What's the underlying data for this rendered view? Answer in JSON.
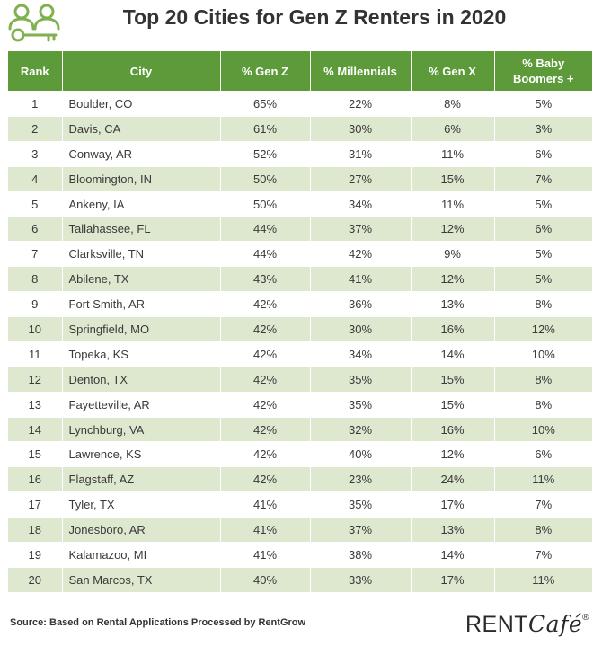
{
  "header": {
    "title": "Top 20 Cities for Gen Z Renters in 2020"
  },
  "colors": {
    "header_bg": "#5c9a3a",
    "row_alt_bg": "#dde8cf",
    "icon": "#7fb24f"
  },
  "icons": {
    "logo": "renters-key-icon"
  },
  "chart_data": {
    "type": "table",
    "title": "Top 20 Cities for Gen Z Renters in 2020",
    "columns": [
      "Rank",
      "City",
      "% Gen Z",
      "% Millennials",
      "% Gen X",
      "% Baby Boomers +"
    ],
    "rows": [
      [
        "1",
        "Boulder, CO",
        "65%",
        "22%",
        "8%",
        "5%"
      ],
      [
        "2",
        "Davis, CA",
        "61%",
        "30%",
        "6%",
        "3%"
      ],
      [
        "3",
        "Conway, AR",
        "52%",
        "31%",
        "11%",
        "6%"
      ],
      [
        "4",
        "Bloomington, IN",
        "50%",
        "27%",
        "15%",
        "7%"
      ],
      [
        "5",
        "Ankeny, IA",
        "50%",
        "34%",
        "11%",
        "5%"
      ],
      [
        "6",
        "Tallahassee, FL",
        "44%",
        "37%",
        "12%",
        "6%"
      ],
      [
        "7",
        "Clarksville, TN",
        "44%",
        "42%",
        "9%",
        "5%"
      ],
      [
        "8",
        "Abilene, TX",
        "43%",
        "41%",
        "12%",
        "5%"
      ],
      [
        "9",
        "Fort Smith, AR",
        "42%",
        "36%",
        "13%",
        "8%"
      ],
      [
        "10",
        "Springfield, MO",
        "42%",
        "30%",
        "16%",
        "12%"
      ],
      [
        "11",
        "Topeka, KS",
        "42%",
        "34%",
        "14%",
        "10%"
      ],
      [
        "12",
        "Denton, TX",
        "42%",
        "35%",
        "15%",
        "8%"
      ],
      [
        "13",
        "Fayetteville, AR",
        "42%",
        "35%",
        "15%",
        "8%"
      ],
      [
        "14",
        "Lynchburg, VA",
        "42%",
        "32%",
        "16%",
        "10%"
      ],
      [
        "15",
        "Lawrence, KS",
        "42%",
        "40%",
        "12%",
        "6%"
      ],
      [
        "16",
        "Flagstaff, AZ",
        "42%",
        "23%",
        "24%",
        "11%"
      ],
      [
        "17",
        "Tyler, TX",
        "41%",
        "35%",
        "17%",
        "7%"
      ],
      [
        "18",
        "Jonesboro, AR",
        "41%",
        "37%",
        "13%",
        "8%"
      ],
      [
        "19",
        "Kalamazoo, MI",
        "41%",
        "38%",
        "14%",
        "7%"
      ],
      [
        "20",
        "San Marcos, TX",
        "40%",
        "33%",
        "17%",
        "11%"
      ]
    ]
  },
  "footer": {
    "source": "Source: Based on Rental Applications Processed by RentGrow",
    "brand_rent": "RENT",
    "brand_cafe": "Café",
    "brand_mark": "®"
  }
}
